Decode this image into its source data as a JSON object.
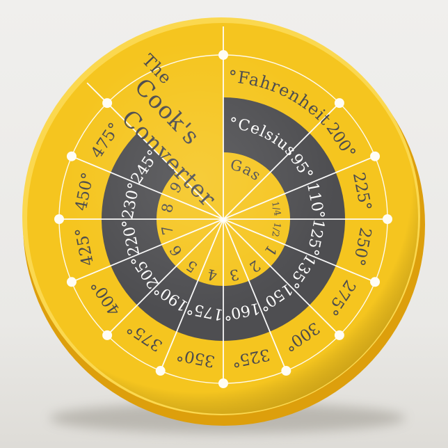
{
  "chart_data": {
    "type": "table",
    "layout": "circular-conversion-wheel",
    "title": "The Cook's Converter",
    "columns": [
      "°Fahrenheit",
      "°Celsius",
      "Gas"
    ],
    "rows": [
      [
        "200°",
        "95°",
        ""
      ],
      [
        "225°",
        "110°",
        "1/4"
      ],
      [
        "250°",
        "125°",
        "1/2"
      ],
      [
        "275°",
        "135°",
        "1"
      ],
      [
        "300°",
        "150°",
        "2"
      ],
      [
        "325°",
        "160°",
        "3"
      ],
      [
        "350°",
        "175°",
        "4"
      ],
      [
        "375°",
        "190°",
        "5"
      ],
      [
        "400°",
        "205°",
        "6"
      ],
      [
        "425°",
        "220°",
        "7"
      ],
      [
        "450°",
        "230°",
        "8"
      ],
      [
        "475°",
        "245°",
        "9"
      ]
    ]
  },
  "title": {
    "line1": "The",
    "line2": "Cook's",
    "line3": "Converter"
  },
  "headers": {
    "fahrenheit": "°Fahrenheit",
    "celsius": "°Celsius",
    "gas": "Gas"
  },
  "colors": {
    "background": "#eae9e6",
    "face_yellow": "#f5c51f",
    "rim_dark": "#dd9f0c",
    "rim_light": "#fbd84f",
    "ring_dark": "#4e4e51",
    "text_dark": "#4a4a4d",
    "text_light": "#ffffff",
    "line_white": "#ffffff",
    "dot_white": "#fffdf5"
  }
}
